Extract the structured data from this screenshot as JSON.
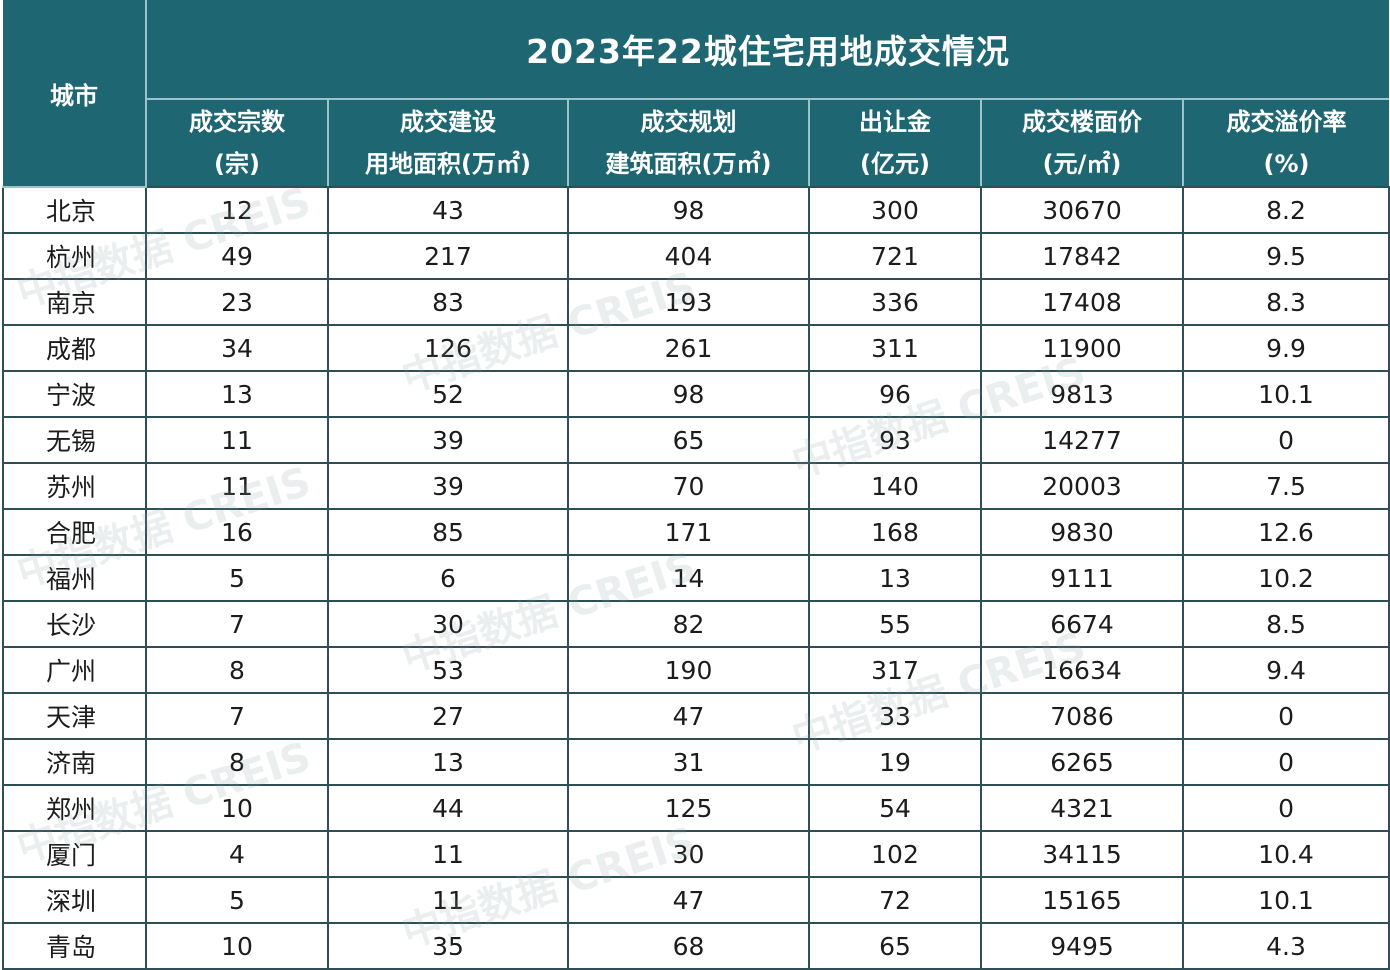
{
  "title": "2023年22城住宅用地成交情况",
  "city_header": "城市",
  "columns": [
    {
      "line1": "成交宗数",
      "line2": "(宗)"
    },
    {
      "line1": "成交建设",
      "line2": "用地面积(万㎡)"
    },
    {
      "line1": "成交规划",
      "line2": "建筑面积(万㎡)"
    },
    {
      "line1": "出让金",
      "line2": "(亿元)"
    },
    {
      "line1": "成交楼面价",
      "line2": "(元/㎡)"
    },
    {
      "line1": "成交溢价率",
      "line2": "(%)"
    }
  ],
  "rows": [
    [
      "北京",
      "12",
      "43",
      "98",
      "300",
      "30670",
      "8.2"
    ],
    [
      "杭州",
      "49",
      "217",
      "404",
      "721",
      "17842",
      "9.5"
    ],
    [
      "南京",
      "23",
      "83",
      "193",
      "336",
      "17408",
      "8.3"
    ],
    [
      "成都",
      "34",
      "126",
      "261",
      "311",
      "11900",
      "9.9"
    ],
    [
      "宁波",
      "13",
      "52",
      "98",
      "96",
      "9813",
      "10.1"
    ],
    [
      "无锡",
      "11",
      "39",
      "65",
      "93",
      "14277",
      "0"
    ],
    [
      "苏州",
      "11",
      "39",
      "70",
      "140",
      "20003",
      "7.5"
    ],
    [
      "合肥",
      "16",
      "85",
      "171",
      "168",
      "9830",
      "12.6"
    ],
    [
      "福州",
      "5",
      "6",
      "14",
      "13",
      "9111",
      "10.2"
    ],
    [
      "长沙",
      "7",
      "30",
      "82",
      "55",
      "6674",
      "8.5"
    ],
    [
      "广州",
      "8",
      "53",
      "190",
      "317",
      "16634",
      "9.4"
    ],
    [
      "天津",
      "7",
      "27",
      "47",
      "33",
      "7086",
      "0"
    ],
    [
      "济南",
      "8",
      "13",
      "31",
      "19",
      "6265",
      "0"
    ],
    [
      "郑州",
      "10",
      "44",
      "125",
      "54",
      "4321",
      "0"
    ],
    [
      "厦门",
      "4",
      "11",
      "30",
      "102",
      "34115",
      "10.4"
    ],
    [
      "深圳",
      "5",
      "11",
      "47",
      "72",
      "15165",
      "10.1"
    ],
    [
      "青岛",
      "10",
      "35",
      "68",
      "65",
      "9495",
      "4.3"
    ]
  ],
  "watermark": "中指数据 CREIS"
}
